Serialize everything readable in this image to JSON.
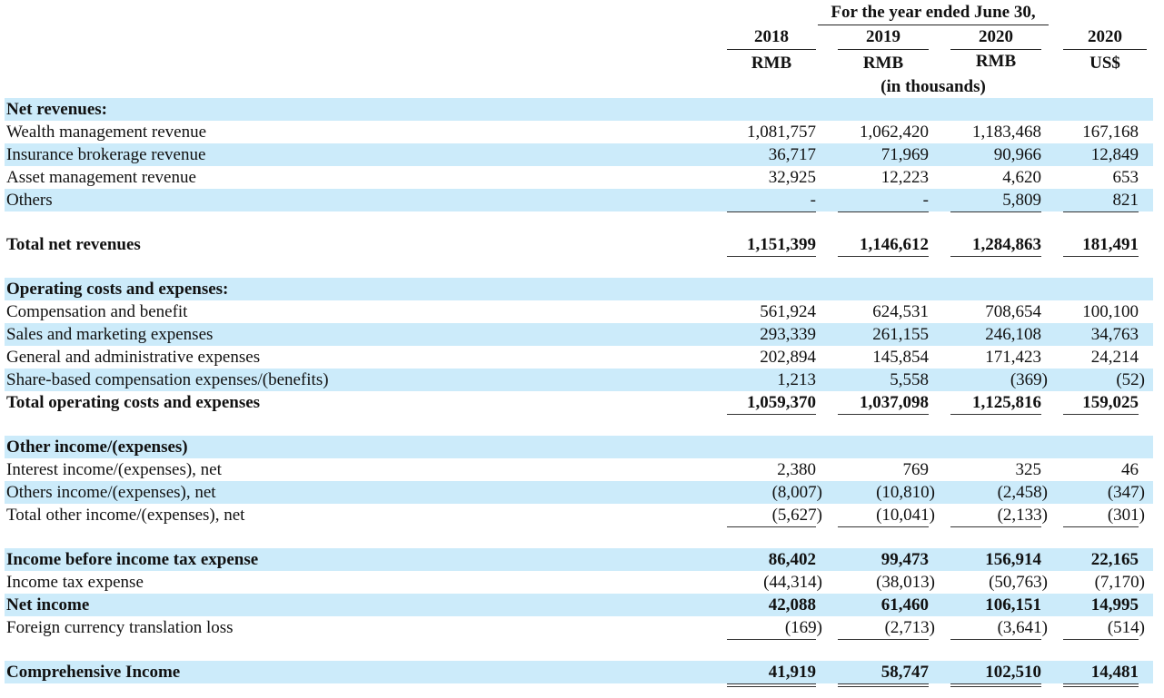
{
  "header": {
    "period": "For the year ended June 30,",
    "years": [
      "2018",
      "2019",
      "2020",
      "2020"
    ],
    "currencies": [
      "RMB",
      "RMB",
      "RMB",
      "US$"
    ],
    "units": "(in thousands)"
  },
  "rows": [
    {
      "label": "Net revenues:",
      "bold": true,
      "band": true,
      "values": [
        "",
        "",
        "",
        ""
      ]
    },
    {
      "label": "Wealth management revenue",
      "bold": false,
      "band": false,
      "values": [
        "1,081,757",
        "1,062,420",
        "1,183,468",
        "167,168"
      ]
    },
    {
      "label": "Insurance brokerage revenue",
      "bold": false,
      "band": true,
      "values": [
        "36,717",
        "71,969",
        "90,966",
        "12,849"
      ]
    },
    {
      "label": "Asset management revenue",
      "bold": false,
      "band": false,
      "values": [
        "32,925",
        "12,223",
        "4,620",
        "653"
      ]
    },
    {
      "label": "Others",
      "bold": false,
      "band": true,
      "values": [
        "-",
        "-",
        "5,809",
        "821"
      ],
      "rule": "single"
    },
    {
      "label": "Total net revenues",
      "bold": true,
      "band": false,
      "values": [
        "1,151,399",
        "1,146,612",
        "1,284,863",
        "181,491"
      ],
      "rule": "single"
    },
    {
      "label": "Operating costs and expenses:",
      "bold": true,
      "band": true,
      "values": [
        "",
        "",
        "",
        ""
      ]
    },
    {
      "label": "Compensation and benefit",
      "bold": false,
      "band": false,
      "values": [
        "561,924",
        "624,531",
        "708,654",
        "100,100"
      ]
    },
    {
      "label": "Sales and marketing expenses",
      "bold": false,
      "band": true,
      "values": [
        "293,339",
        "261,155",
        "246,108",
        "34,763"
      ]
    },
    {
      "label": "General and administrative expenses",
      "bold": false,
      "band": false,
      "values": [
        "202,894",
        "145,854",
        "171,423",
        "24,214"
      ]
    },
    {
      "label": "Share-based compensation expenses/(benefits)",
      "bold": false,
      "band": true,
      "values": [
        "1,213",
        "5,558",
        "(369)",
        "(52)"
      ]
    },
    {
      "label": "Total operating costs and expenses",
      "bold": true,
      "band": false,
      "values": [
        "1,059,370",
        "1,037,098",
        "1,125,816",
        "159,025"
      ],
      "rule": "single"
    },
    {
      "label": "Other income/(expenses)",
      "bold": true,
      "band": true,
      "values": [
        "",
        "",
        "",
        ""
      ]
    },
    {
      "label": "Interest income/(expenses), net",
      "bold": false,
      "band": false,
      "values": [
        "2,380",
        "769",
        "325",
        "46"
      ]
    },
    {
      "label": "Others income/(expenses), net",
      "bold": false,
      "band": true,
      "values": [
        "(8,007)",
        "(10,810)",
        "(2,458)",
        "(347)"
      ]
    },
    {
      "label": "Total other income/(expenses), net",
      "bold": false,
      "band": false,
      "values": [
        "(5,627)",
        "(10,041)",
        "(2,133)",
        "(301)"
      ],
      "rule": "single"
    },
    {
      "label": "Income before income tax expense",
      "bold": true,
      "band": true,
      "values": [
        "86,402",
        "99,473",
        "156,914",
        "22,165"
      ]
    },
    {
      "label": "Income tax expense",
      "bold": false,
      "band": false,
      "values": [
        "(44,314)",
        "(38,013)",
        "(50,763)",
        "(7,170)"
      ]
    },
    {
      "label": "Net income",
      "bold": true,
      "band": true,
      "values": [
        "42,088",
        "61,460",
        "106,151",
        "14,995"
      ]
    },
    {
      "label": "Foreign currency translation loss",
      "bold": false,
      "band": false,
      "values": [
        "(169)",
        "(2,713)",
        "(3,641)",
        "(514)"
      ],
      "rule": "single"
    },
    {
      "label": "Comprehensive Income",
      "bold": true,
      "band": true,
      "values": [
        "41,919",
        "58,747",
        "102,510",
        "14,481"
      ],
      "rule": "double"
    }
  ]
}
